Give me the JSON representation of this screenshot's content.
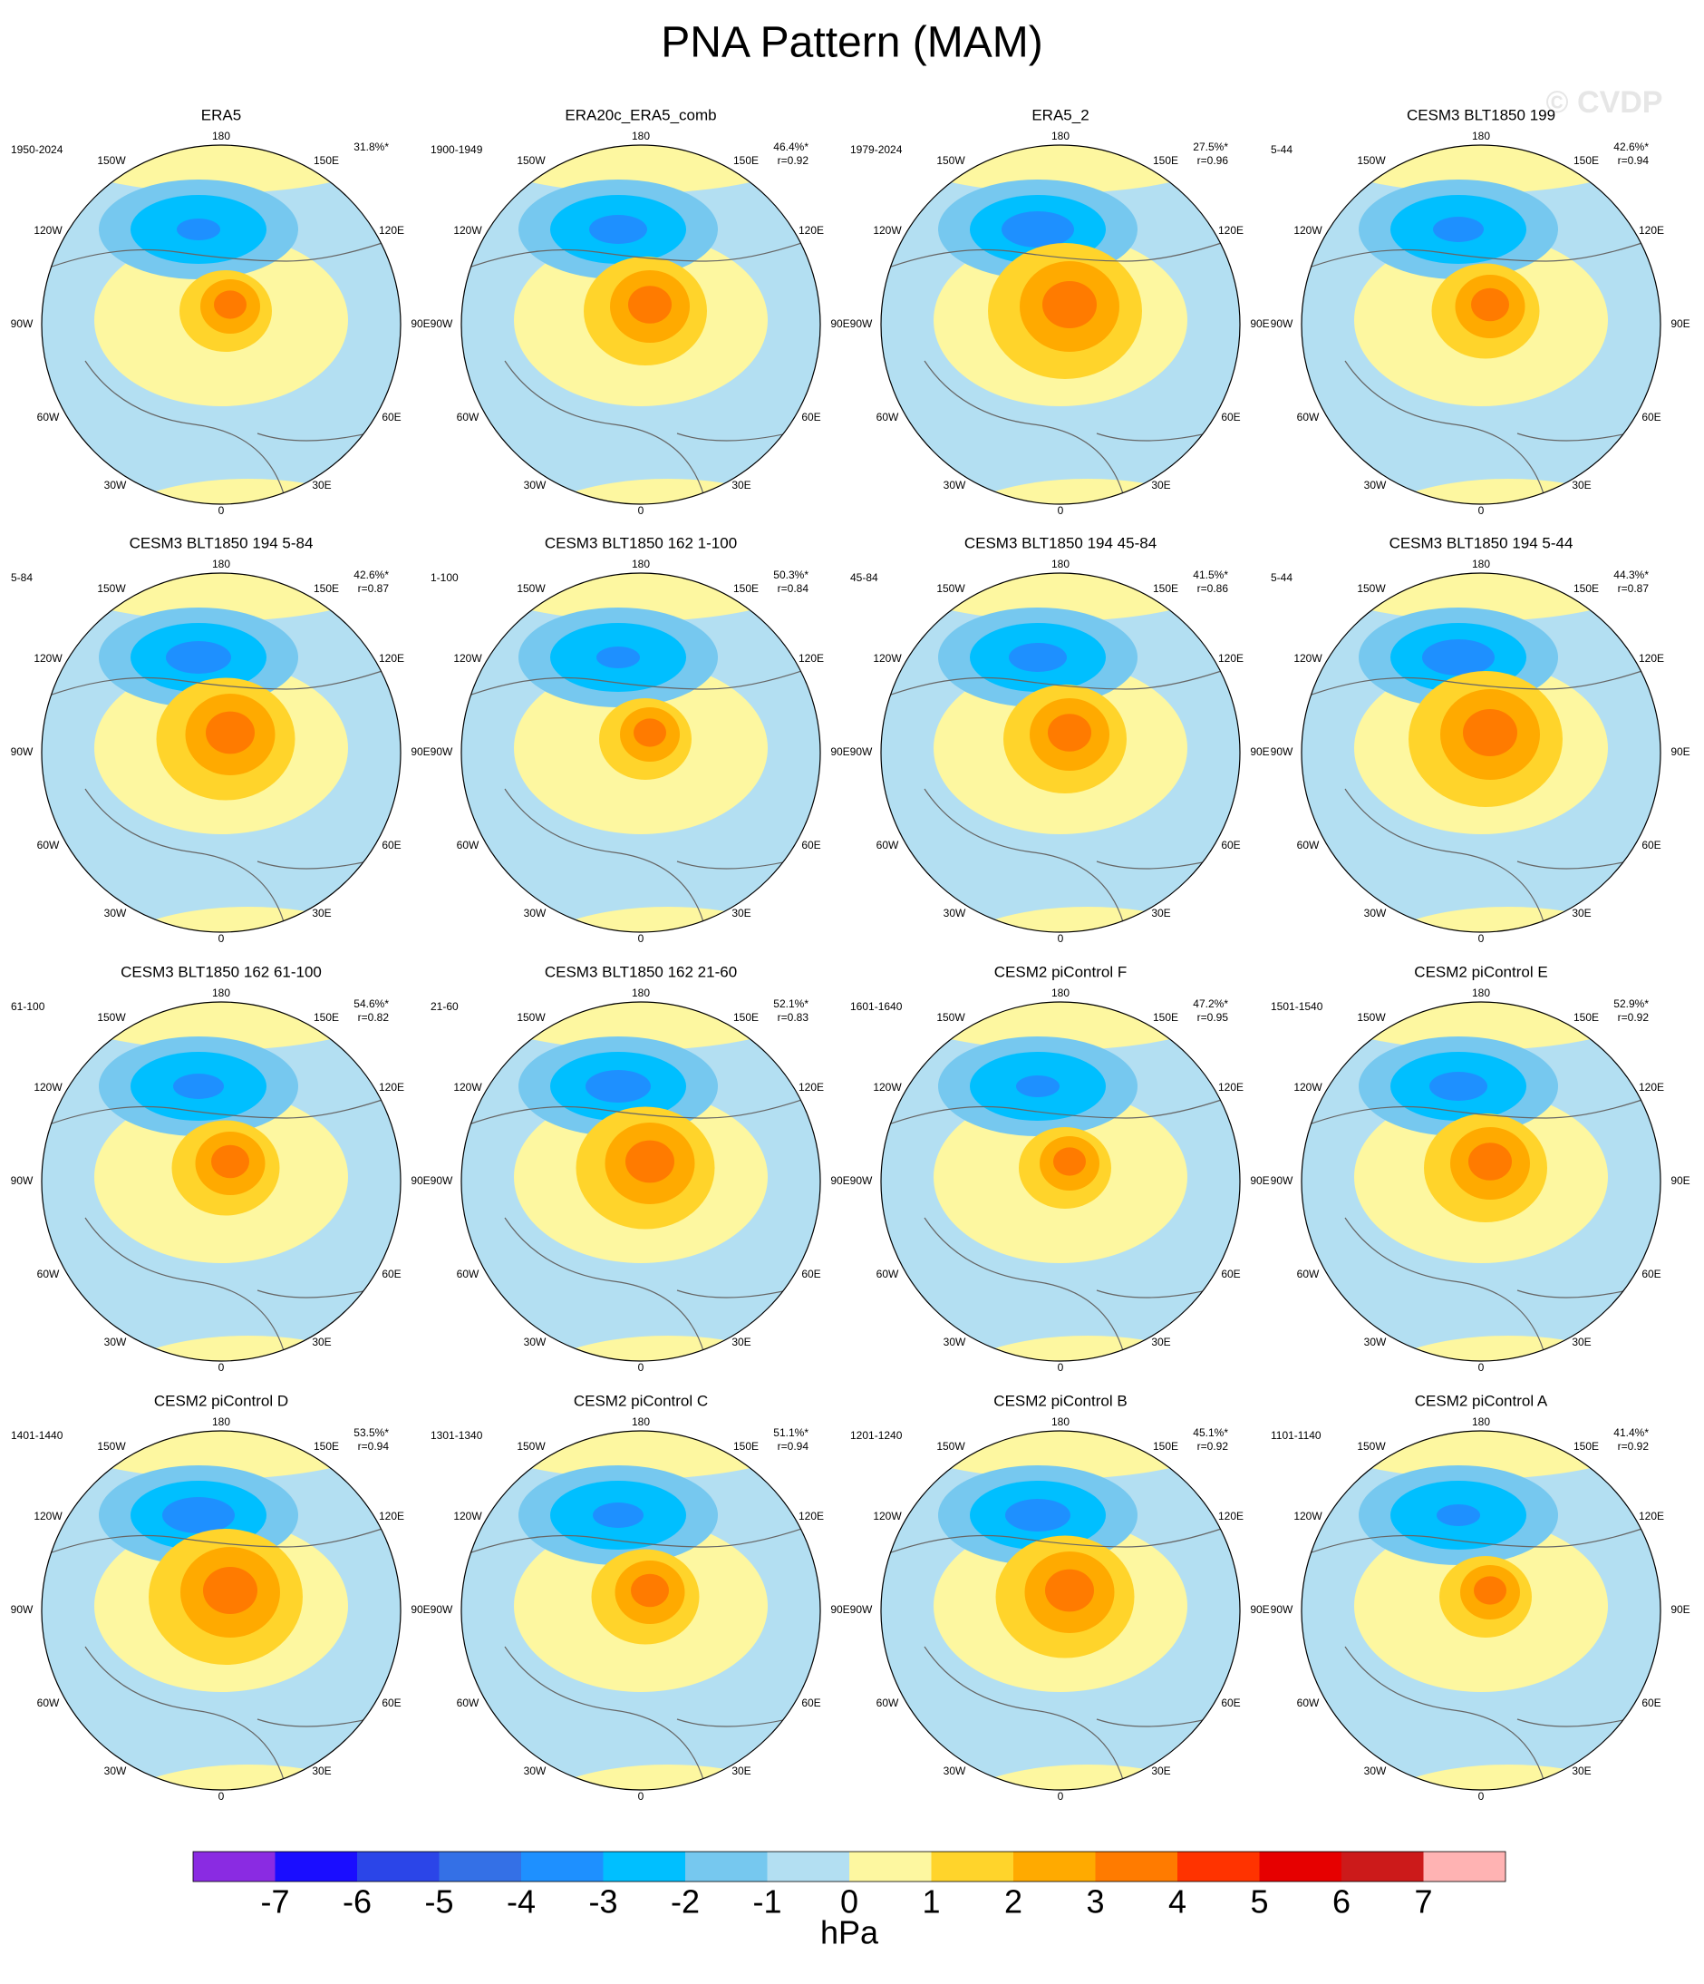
{
  "chart_data": {
    "type": "polar-map-panels",
    "title": "PNA Pattern (MAM)",
    "watermark": "© CVDP",
    "lon_labels": [
      "180",
      "150W",
      "150E",
      "120W",
      "120E",
      "90W",
      "90E",
      "60W",
      "60E",
      "30W",
      "30E",
      "0"
    ],
    "panels": [
      {
        "title": "ERA5",
        "period": "1950-2024",
        "pct": "31.8%*"
      },
      {
        "title": "ERA20c_ERA5_comb",
        "period": "1900-1949",
        "pct": "46.4%*",
        "r": "r=0.92"
      },
      {
        "title": "ERA5_2",
        "period": "1979-2024",
        "pct": "27.5%*",
        "r": "r=0.96"
      },
      {
        "title": "CESM3 BLT1850 199",
        "period": "5-44",
        "pct": "42.6%*",
        "r": "r=0.94"
      },
      {
        "title": "CESM3 BLT1850 194 5-84",
        "period": "5-84",
        "pct": "42.6%*",
        "r": "r=0.87"
      },
      {
        "title": "CESM3 BLT1850 162 1-100",
        "period": "1-100",
        "pct": "50.3%*",
        "r": "r=0.84"
      },
      {
        "title": "CESM3 BLT1850 194 45-84",
        "period": "45-84",
        "pct": "41.5%*",
        "r": "r=0.86"
      },
      {
        "title": "CESM3 BLT1850 194 5-44",
        "period": "5-44",
        "pct": "44.3%*",
        "r": "r=0.87"
      },
      {
        "title": "CESM3 BLT1850 162 61-100",
        "period": "61-100",
        "pct": "54.6%*",
        "r": "r=0.82"
      },
      {
        "title": "CESM3 BLT1850 162 21-60",
        "period": "21-60",
        "pct": "52.1%*",
        "r": "r=0.83"
      },
      {
        "title": "CESM2 piControl F",
        "period": "1601-1640",
        "pct": "47.2%*",
        "r": "r=0.95"
      },
      {
        "title": "CESM2 piControl E",
        "period": "1501-1540",
        "pct": "52.9%*",
        "r": "r=0.92"
      },
      {
        "title": "CESM2 piControl D",
        "period": "1401-1440",
        "pct": "53.5%*",
        "r": "r=0.94"
      },
      {
        "title": "CESM2 piControl C",
        "period": "1301-1340",
        "pct": "51.1%*",
        "r": "r=0.94"
      },
      {
        "title": "CESM2 piControl B",
        "period": "1201-1240",
        "pct": "45.1%*",
        "r": "r=0.92"
      },
      {
        "title": "CESM2 piControl A",
        "period": "1101-1140",
        "pct": "41.4%*",
        "r": "r=0.92"
      }
    ],
    "colorbar": {
      "levels": [
        -7,
        -6,
        -5,
        -4,
        -3,
        -2,
        -1,
        0,
        1,
        2,
        3,
        4,
        5,
        6,
        7
      ],
      "colors": [
        "#8a2be2",
        "#1a0dff",
        "#2b45e8",
        "#3470e6",
        "#1e90ff",
        "#00bfff",
        "#76c8ef",
        "#b3dff2",
        "#fdf7a0",
        "#ffd42b",
        "#ffaa00",
        "#ff7b00",
        "#ff3300",
        "#e60000",
        "#cc1a1a",
        "#ffb3b3"
      ],
      "unit": "hPa"
    }
  }
}
